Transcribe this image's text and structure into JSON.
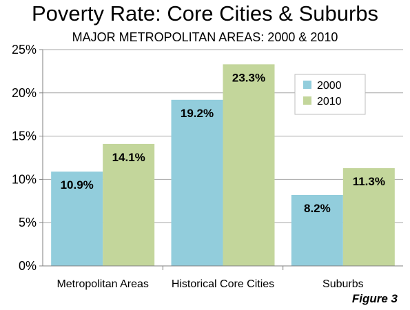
{
  "chart_data": {
    "type": "bar",
    "title": "Poverty Rate: Core Cities & Suburbs",
    "subtitle": "MAJOR METROPOLITAN AREAS: 2000 & 2010",
    "categories": [
      "Metropolitan Areas",
      "Historical Core Cities",
      "Suburbs"
    ],
    "series": [
      {
        "name": "2000",
        "values": [
          10.9,
          19.2,
          8.2
        ],
        "labels": [
          "10.9%",
          "19.2%",
          "8.2%"
        ],
        "color": "#92cddc"
      },
      {
        "name": "2010",
        "values": [
          14.1,
          23.3,
          11.3
        ],
        "labels": [
          "14.1%",
          "23.3%",
          "11.3%"
        ],
        "color": "#c3d69b"
      }
    ],
    "ylim": [
      0,
      25
    ],
    "yticks": [
      0,
      5,
      10,
      15,
      20,
      25
    ],
    "ytick_labels": [
      "0%",
      "5%",
      "10%",
      "15%",
      "20%",
      "25%"
    ],
    "grid": true,
    "legend_position": "top-right",
    "footnote": "Figure 3"
  }
}
